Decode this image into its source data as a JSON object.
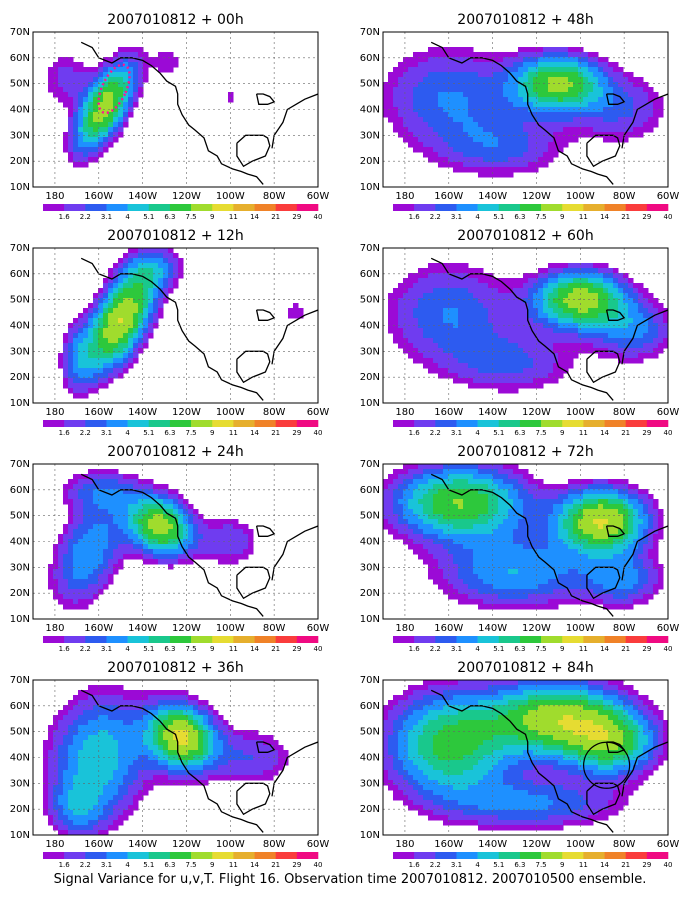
{
  "caption": "Signal Variance for u,v,T. Flight 16. Observation time 2007010812. 2007010500 ensemble.",
  "colorbar": {
    "levels": [
      "1.6",
      "2.2",
      "3.1",
      "4",
      "5.1",
      "6.3",
      "7.5",
      "9",
      "11",
      "14",
      "21",
      "29",
      "40"
    ],
    "colors": [
      "#ffffff",
      "#9b0ad6",
      "#6f3cf0",
      "#2d5bf0",
      "#1e90ff",
      "#19c3d9",
      "#19c88c",
      "#2dc83c",
      "#a0dc2d",
      "#e6dc32",
      "#e6af2d",
      "#f08228",
      "#fa3c3c",
      "#f00a82"
    ]
  },
  "map": {
    "lon_labels": [
      "180",
      "160W",
      "140W",
      "120W",
      "100W",
      "80W",
      "60W"
    ],
    "lat_labels": [
      "10N",
      "20N",
      "30N",
      "40N",
      "50N",
      "60N",
      "70N"
    ],
    "lon_range": [
      -190,
      -60
    ],
    "lat_range": [
      10,
      70
    ]
  },
  "chart_data": [
    {
      "type": "heatmap",
      "title": "2007010812 + 00h",
      "field": "signal variance",
      "blobs": [
        {
          "lon": -157,
          "lat": 41,
          "rlon": 9,
          "rlat": 20,
          "rot": -35,
          "peak": 10
        },
        {
          "lon": -175,
          "lat": 52,
          "rlon": 13,
          "rlat": 12,
          "rot": 0,
          "peak": 2.5
        },
        {
          "lon": -128,
          "lat": 58,
          "rlon": 8,
          "rlat": 8,
          "rot": 0,
          "peak": 2
        },
        {
          "lon": -100,
          "lat": 45,
          "rlon": 5,
          "rlat": 6,
          "rot": 0,
          "peak": 1.8
        }
      ],
      "annotation": "dotted-ellipse"
    },
    {
      "type": "heatmap",
      "title": "2007010812 + 48h",
      "field": "signal variance",
      "blobs": [
        {
          "lon": -110,
          "lat": 50,
          "rlon": 20,
          "rlat": 11,
          "rot": 0,
          "peak": 9
        },
        {
          "lon": -160,
          "lat": 45,
          "rlon": 32,
          "rlat": 20,
          "rot": 0,
          "peak": 4
        },
        {
          "lon": -80,
          "lat": 40,
          "rlon": 22,
          "rlat": 14,
          "rot": 0,
          "peak": 3
        },
        {
          "lon": -135,
          "lat": 25,
          "rlon": 30,
          "rlat": 12,
          "rot": 0,
          "peak": 3
        }
      ]
    },
    {
      "type": "heatmap",
      "title": "2007010812 + 12h",
      "field": "signal variance",
      "blobs": [
        {
          "lon": -150,
          "lat": 42,
          "rlon": 11,
          "rlat": 22,
          "rot": -35,
          "peak": 11
        },
        {
          "lon": -170,
          "lat": 28,
          "rlon": 8,
          "rlat": 14,
          "rot": 0,
          "peak": 3
        },
        {
          "lon": -135,
          "lat": 62,
          "rlon": 14,
          "rlat": 8,
          "rot": 0,
          "peak": 3
        },
        {
          "lon": -70,
          "lat": 45,
          "rlon": 6,
          "rlat": 6,
          "rot": 0,
          "peak": 2
        }
      ]
    },
    {
      "type": "heatmap",
      "title": "2007010812 + 60h",
      "field": "signal variance",
      "blobs": [
        {
          "lon": -100,
          "lat": 50,
          "rlon": 20,
          "rlat": 11,
          "rot": 0,
          "peak": 10
        },
        {
          "lon": -160,
          "lat": 45,
          "rlon": 30,
          "rlat": 20,
          "rot": 0,
          "peak": 4
        },
        {
          "lon": -130,
          "lat": 25,
          "rlon": 30,
          "rlat": 12,
          "rot": 0,
          "peak": 3
        },
        {
          "lon": -75,
          "lat": 38,
          "rlon": 18,
          "rlat": 12,
          "rot": 0,
          "peak": 4
        }
      ]
    },
    {
      "type": "heatmap",
      "title": "2007010812 + 24h",
      "field": "signal variance",
      "blobs": [
        {
          "lon": -132,
          "lat": 46,
          "rlon": 15,
          "rlat": 11,
          "rot": -20,
          "peak": 10
        },
        {
          "lon": -165,
          "lat": 35,
          "rlon": 14,
          "rlat": 22,
          "rot": -30,
          "peak": 5
        },
        {
          "lon": -160,
          "lat": 60,
          "rlon": 18,
          "rlat": 8,
          "rot": 0,
          "peak": 3
        },
        {
          "lon": -100,
          "lat": 40,
          "rlon": 14,
          "rlat": 10,
          "rot": 0,
          "peak": 3
        }
      ]
    },
    {
      "type": "heatmap",
      "title": "2007010812 + 72h",
      "field": "signal variance",
      "blobs": [
        {
          "lon": -90,
          "lat": 48,
          "rlon": 20,
          "rlat": 12,
          "rot": 0,
          "peak": 11
        },
        {
          "lon": -155,
          "lat": 55,
          "rlon": 30,
          "rlat": 14,
          "rot": 0,
          "peak": 9
        },
        {
          "lon": -130,
          "lat": 28,
          "rlon": 35,
          "rlat": 14,
          "rot": 0,
          "peak": 5
        },
        {
          "lon": -80,
          "lat": 25,
          "rlon": 18,
          "rlat": 10,
          "rot": 0,
          "peak": 4
        }
      ]
    },
    {
      "type": "heatmap",
      "title": "2007010812 + 36h",
      "field": "signal variance",
      "blobs": [
        {
          "lon": -122,
          "lat": 48,
          "rlon": 15,
          "rlat": 12,
          "rot": -20,
          "peak": 11
        },
        {
          "lon": -160,
          "lat": 40,
          "rlon": 22,
          "rlat": 25,
          "rot": -25,
          "peak": 6
        },
        {
          "lon": -90,
          "lat": 40,
          "rlon": 20,
          "rlat": 12,
          "rot": 0,
          "peak": 3
        },
        {
          "lon": -170,
          "lat": 20,
          "rlon": 12,
          "rlat": 10,
          "rot": 0,
          "peak": 3
        }
      ]
    },
    {
      "type": "heatmap",
      "title": "2007010812 + 84h",
      "field": "signal variance",
      "blobs": [
        {
          "lon": -110,
          "lat": 55,
          "rlon": 30,
          "rlat": 14,
          "rot": 0,
          "peak": 10
        },
        {
          "lon": -160,
          "lat": 45,
          "rlon": 28,
          "rlat": 20,
          "rot": 0,
          "peak": 8
        },
        {
          "lon": -85,
          "lat": 45,
          "rlon": 20,
          "rlat": 12,
          "rot": 0,
          "peak": 7
        },
        {
          "lon": -120,
          "lat": 22,
          "rlon": 40,
          "rlat": 10,
          "rot": 0,
          "peak": 4
        }
      ],
      "annotation": "circle"
    }
  ]
}
